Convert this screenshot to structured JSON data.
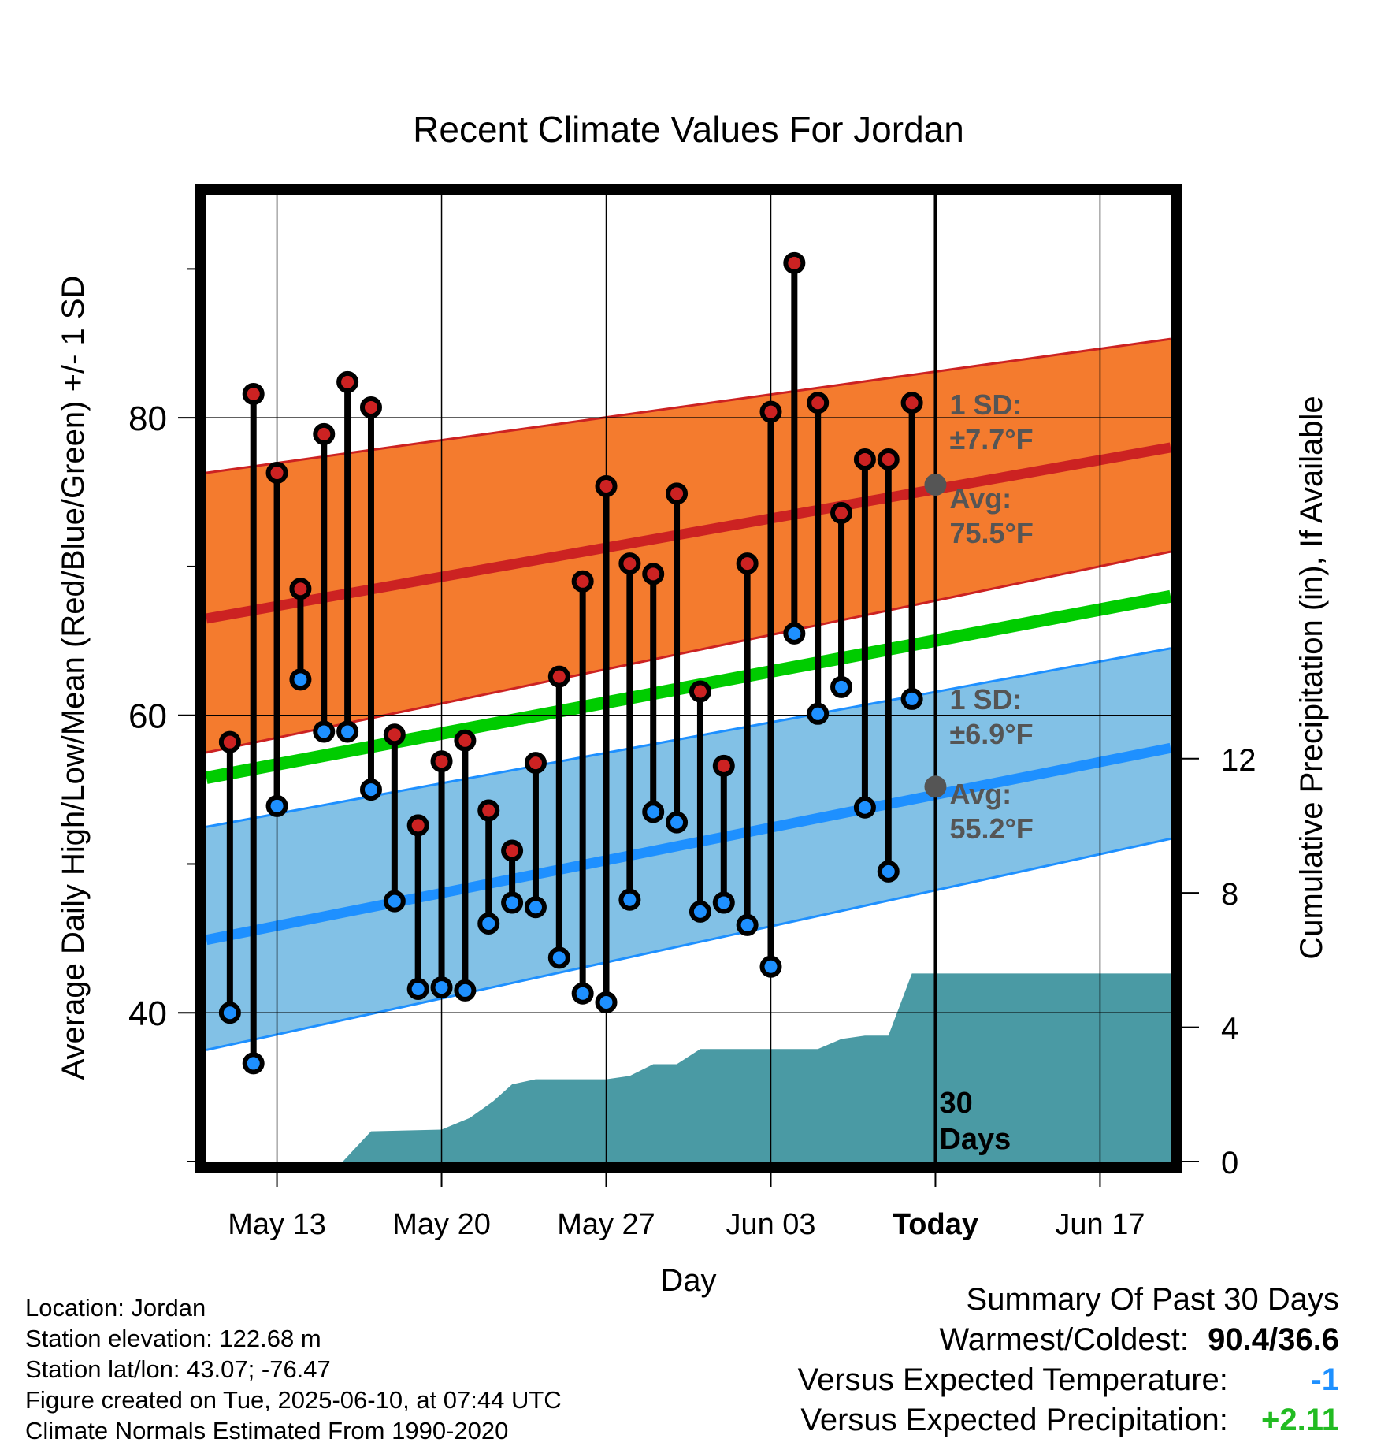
{
  "chart_data": {
    "type": "line",
    "title": "Recent Climate Values For Jordan",
    "xlabel": "Day",
    "ylabel": "Average Daily High/Low/Mean (Red/Blue/Green) +/- 1 SD",
    "y2label": "Cumulative Precipitation (in), If Available",
    "x_tick_labels": [
      "May 13",
      "May 20",
      "May 27",
      "Jun 03",
      "Today",
      "Jun 17"
    ],
    "x_ticks_day_index": [
      3,
      10,
      17,
      24,
      31,
      38
    ],
    "x_range_day_index": [
      0,
      41
    ],
    "start_date": "2025-05-10",
    "today_label": "30\nDays",
    "ylim": [
      30,
      95
    ],
    "y_ticks": [
      40,
      60,
      80
    ],
    "y_minor_ticks": [
      30,
      50,
      70,
      90
    ],
    "y2lim": [
      0,
      28.8
    ],
    "y2_ticks": [
      0,
      4,
      8,
      12
    ],
    "grid": true,
    "normals": {
      "day_index": [
        0,
        41
      ],
      "high_mean": [
        66.5,
        78.0
      ],
      "high_upper": [
        76.3,
        85.3
      ],
      "high_lower": [
        57.5,
        71.0
      ],
      "mean": [
        55.8,
        68.0
      ],
      "low_mean": [
        44.9,
        57.8
      ],
      "low_upper": [
        52.5,
        64.5
      ],
      "low_lower": [
        37.5,
        51.7
      ]
    },
    "annotations": {
      "high_sd": "1 SD:\n±7.7°F",
      "high_avg": "Avg:\n75.5°F",
      "high_avg_value": 75.5,
      "low_sd": "1 SD:\n±6.9°F",
      "low_avg": "Avg:\n55.2°F",
      "low_avg_value": 55.2
    },
    "series": [
      {
        "name": "High",
        "color": "#cc2222",
        "x": [
          1,
          2,
          3,
          4,
          5,
          6,
          7,
          8,
          9,
          10,
          11,
          12,
          13,
          14,
          15,
          16,
          17,
          18,
          19,
          20,
          21,
          22,
          23,
          24,
          25,
          26,
          27,
          28,
          29,
          30
        ],
        "values": [
          58.2,
          81.6,
          76.3,
          68.5,
          78.9,
          82.4,
          80.7,
          58.7,
          52.6,
          56.9,
          58.3,
          53.6,
          50.9,
          56.8,
          62.6,
          69.0,
          75.4,
          70.2,
          69.5,
          74.9,
          61.6,
          56.6,
          70.2,
          80.4,
          90.4,
          81.0,
          73.6,
          77.2,
          77.2,
          81.0
        ]
      },
      {
        "name": "Low",
        "color": "#1e90ff",
        "x": [
          1,
          2,
          3,
          4,
          5,
          6,
          7,
          8,
          9,
          10,
          11,
          12,
          13,
          14,
          15,
          16,
          17,
          18,
          19,
          20,
          21,
          22,
          23,
          24,
          25,
          26,
          27,
          28,
          29,
          30
        ],
        "values": [
          40.0,
          36.6,
          53.9,
          62.4,
          58.9,
          58.9,
          55.0,
          47.5,
          41.6,
          41.7,
          41.5,
          46.0,
          47.4,
          47.1,
          43.7,
          41.3,
          40.7,
          47.6,
          53.5,
          52.8,
          46.8,
          47.4,
          45.9,
          43.1,
          65.5,
          60.1,
          61.9,
          53.8,
          49.5,
          61.1
        ]
      }
    ],
    "precipitation": {
      "day_index": [
        5.8,
        7.0,
        10.0,
        11.2,
        12.2,
        13.0,
        14.0,
        17.0,
        18.0,
        19.0,
        20.0,
        21.0,
        22.0,
        23.0,
        26.0,
        27.0,
        28.0,
        29.0,
        30.0,
        41.0
      ],
      "values": [
        0.0,
        0.9,
        0.95,
        1.3,
        1.8,
        2.3,
        2.45,
        2.45,
        2.55,
        2.9,
        2.9,
        3.35,
        3.35,
        3.35,
        3.35,
        3.65,
        3.75,
        3.75,
        5.6,
        5.6
      ]
    },
    "colors": {
      "high_band": "#f47b2e",
      "high_line": "#cc2222",
      "low_band": "#82c1e6",
      "low_line": "#1e90ff",
      "mean_line": "#00cc00",
      "precip": "#4a9aa4",
      "high_marker": "#cc2222",
      "low_marker": "#1e90ff",
      "annotation": "#555555"
    }
  },
  "info": {
    "location": "Location: Jordan",
    "elevation": "Station elevation: 122.68 m",
    "latlon": "Station lat/lon: 43.07; -76.47",
    "created": "Figure created on Tue, 2025-06-10, at 07:44 UTC",
    "normals": "Climate Normals Estimated From 1990-2020"
  },
  "summary": {
    "title": "Summary Of Past 30 Days",
    "warmest_label": "Warmest/Coldest:",
    "warmest_value": "90.4/36.6",
    "temp_label": "Versus Expected Temperature:",
    "temp_value": "-1",
    "temp_color": "#1e90ff",
    "precip_label": "Versus Expected Precipitation:",
    "precip_value": "+2.11",
    "precip_color": "#22bb22"
  }
}
